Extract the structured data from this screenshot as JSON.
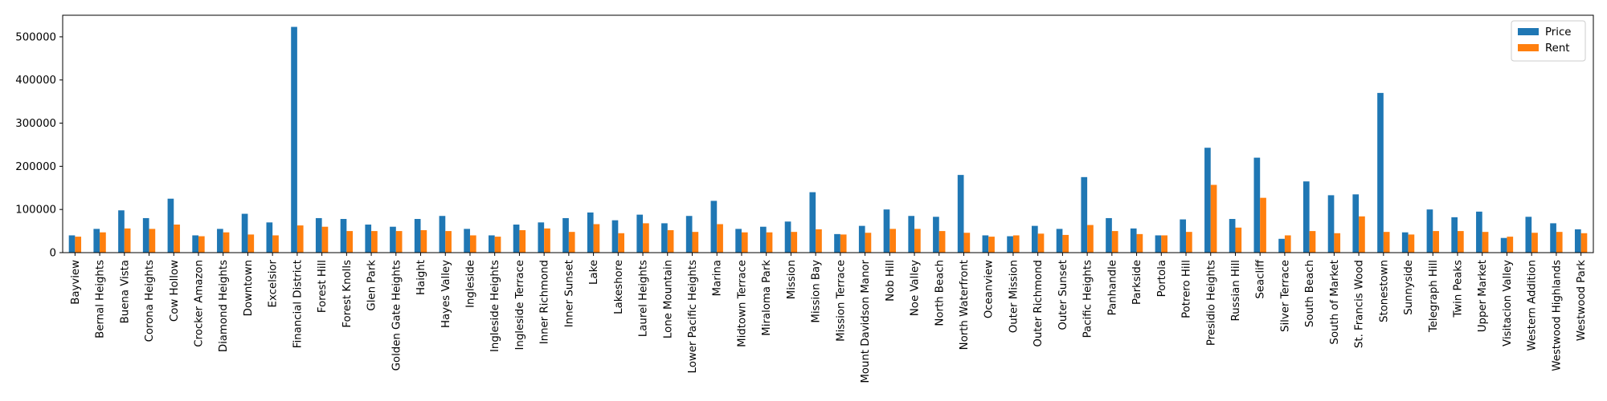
{
  "chart_data": {
    "type": "bar",
    "title": "",
    "xlabel": "",
    "ylabel": "",
    "ylim": [
      0,
      550000
    ],
    "yticks": [
      0,
      100000,
      200000,
      300000,
      400000,
      500000
    ],
    "grid": false,
    "legend_position": "top-right",
    "categories": [
      "Bayview",
      "Bernal Heights",
      "Buena Vista",
      "Corona Heights",
      "Cow Hollow",
      "Crocker Amazon",
      "Diamond Heights",
      "Downtown",
      "Excelsior",
      "Financial District",
      "Forest Hill",
      "Forest Knolls",
      "Glen Park",
      "Golden Gate Heights",
      "Haight",
      "Hayes Valley",
      "Ingleside",
      "Ingleside Heights",
      "Ingleside Terrace",
      "Inner Richmond",
      "Inner Sunset",
      "Lake",
      "Lakeshore",
      "Laurel Heights",
      "Lone Mountain",
      "Lower Pacific Heights",
      "Marina",
      "Midtown Terrace",
      "Miraloma Park",
      "Mission",
      "Mission Bay",
      "Mission Terrace",
      "Mount Davidson Manor",
      "Nob Hill",
      "Noe Valley",
      "North Beach",
      "North Waterfront",
      "Oceanview",
      "Outer Mission",
      "Outer Richmond",
      "Outer Sunset",
      "Pacific Heights",
      "Panhandle",
      "Parkside",
      "Portola",
      "Potrero Hill",
      "Presidio Heights",
      "Russian Hill",
      "Seacliff",
      "Silver Terrace",
      "South Beach",
      "South of Market",
      "St. Francis Wood",
      "Stonestown",
      "Sunnyside",
      "Telegraph Hill",
      "Twin Peaks",
      "Upper Market",
      "Visitacion Valley",
      "Western Addition",
      "Westwood Highlands",
      "Westwood Park"
    ],
    "series": [
      {
        "name": "Price",
        "color": "#1f77b4",
        "values": [
          40000,
          55000,
          98000,
          80000,
          125000,
          40000,
          55000,
          90000,
          70000,
          523000,
          80000,
          78000,
          65000,
          60000,
          78000,
          85000,
          55000,
          40000,
          65000,
          70000,
          80000,
          93000,
          75000,
          88000,
          68000,
          85000,
          120000,
          55000,
          60000,
          72000,
          140000,
          43000,
          62000,
          100000,
          85000,
          83000,
          180000,
          40000,
          38000,
          62000,
          55000,
          175000,
          80000,
          56000,
          40000,
          77000,
          243000,
          78000,
          220000,
          32000,
          165000,
          133000,
          135000,
          370000,
          47000,
          100000,
          82000,
          95000,
          34000,
          83000,
          68000,
          54000
        ]
      },
      {
        "name": "Rent",
        "color": "#ff7f0e",
        "values": [
          37000,
          47000,
          56000,
          55000,
          65000,
          38000,
          47000,
          42000,
          40000,
          63000,
          60000,
          50000,
          50000,
          50000,
          52000,
          50000,
          40000,
          37000,
          52000,
          56000,
          48000,
          66000,
          45000,
          68000,
          52000,
          48000,
          66000,
          47000,
          47000,
          48000,
          54000,
          42000,
          46000,
          55000,
          55000,
          50000,
          46000,
          37000,
          40000,
          44000,
          41000,
          64000,
          50000,
          43000,
          40000,
          48000,
          157000,
          58000,
          127000,
          40000,
          50000,
          45000,
          84000,
          48000,
          42000,
          50000,
          50000,
          48000,
          37000,
          46000,
          48000,
          45000
        ]
      }
    ]
  }
}
